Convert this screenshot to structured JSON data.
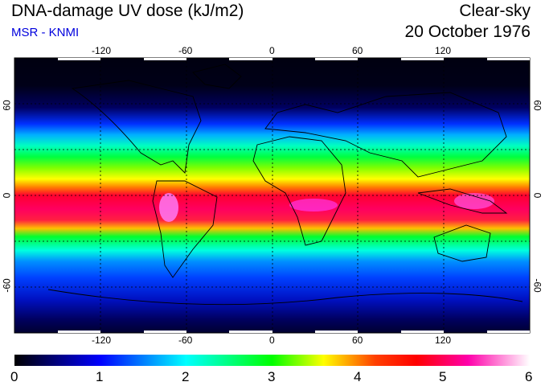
{
  "header": {
    "title": "DNA-damage UV dose (kJ/m2)",
    "subtitle": "MSR - KNMI",
    "condition": "Clear-sky",
    "date": "20 October 1976"
  },
  "map": {
    "lon_ticks": [
      "-120",
      "-60",
      "0",
      "60",
      "120"
    ],
    "lat_ticks_left": [
      "60",
      "0",
      "-60"
    ],
    "lat_ticks_right": [
      "60",
      "0",
      "-60"
    ]
  },
  "colorbar": {
    "labels": [
      "0",
      "1",
      "2",
      "3",
      "4",
      "5",
      "6"
    ],
    "colors": [
      "#000000",
      "#0000ff",
      "#00ffff",
      "#00ff00",
      "#ffff00",
      "#ff0000",
      "#ff00ff",
      "#ffffff"
    ]
  }
}
